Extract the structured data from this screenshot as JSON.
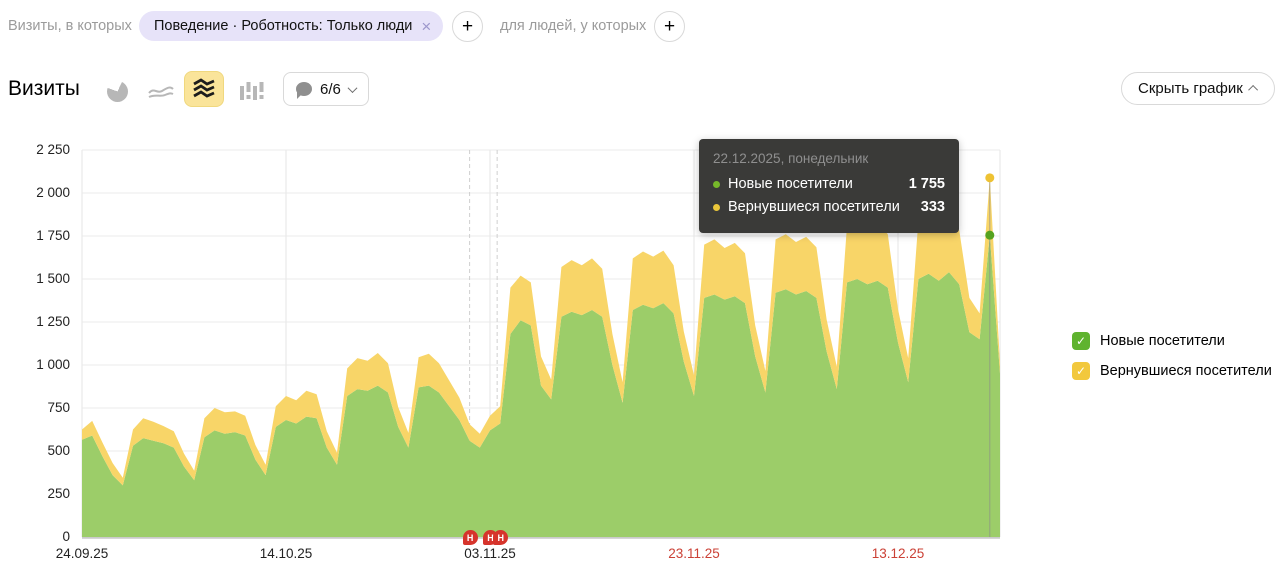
{
  "filter_bar": {
    "prefix_label": "Визиты, в которых",
    "chip": {
      "label": "Поведение · Роботность: Только люди",
      "close": "×"
    },
    "add_visit_filter": "+",
    "suffix_label": "для людей, у которых",
    "add_user_filter": "+"
  },
  "header": {
    "title": "Визиты",
    "comments_count": "6/6",
    "hide_chart_label": "Скрыть график"
  },
  "icons": {
    "check": "✓",
    "close": "×",
    "plus": "+",
    "annotation_badge": "Н"
  },
  "tooltip": {
    "date": "22.12.2025, понедельник",
    "rows": [
      {
        "label": "Новые посетители",
        "value": "1 755",
        "color": "#76b82a"
      },
      {
        "label": "Вернувшиеся посетители",
        "value": "333",
        "color": "#eac63a"
      }
    ]
  },
  "legend": [
    {
      "label": "Новые посетители",
      "color": "#5fb32f"
    },
    {
      "label": "Вернувшиеся посетители",
      "color": "#f2c83d"
    }
  ],
  "chart_data": {
    "type": "area",
    "stacked": true,
    "title": "Визиты",
    "ylim": [
      0,
      2250
    ],
    "grid": true,
    "legend_position": "right",
    "y_ticks": [
      {
        "v": 0,
        "label": "0"
      },
      {
        "v": 250,
        "label": "250"
      },
      {
        "v": 500,
        "label": "500"
      },
      {
        "v": 750,
        "label": "750"
      },
      {
        "v": 1000,
        "label": "1 000"
      },
      {
        "v": 1250,
        "label": "1 250"
      },
      {
        "v": 1500,
        "label": "1 500"
      },
      {
        "v": 1750,
        "label": "1 750"
      },
      {
        "v": 2000,
        "label": "2 000"
      },
      {
        "v": 2250,
        "label": "2 250"
      }
    ],
    "x_ticks": [
      {
        "day": 0,
        "label": "24.09.25",
        "weekend": false
      },
      {
        "day": 20,
        "label": "14.10.25",
        "weekend": false
      },
      {
        "day": 40,
        "label": "03.11.25",
        "weekend": false
      },
      {
        "day": 60,
        "label": "23.11.25",
        "weekend": true
      },
      {
        "day": 80,
        "label": "13.12.25",
        "weekend": true
      }
    ],
    "grid_days": [
      0,
      20,
      40,
      60,
      80,
      90
    ],
    "dashed_line_days": [
      38,
      40.7
    ],
    "annotation_days": [
      38,
      40,
      41
    ],
    "date_range": {
      "start": "24.09.25",
      "end": "23.12.25"
    },
    "series": [
      {
        "name": "Новые посетители",
        "color": "#9ccd69",
        "values": [
          565,
          590,
          470,
          360,
          300,
          530,
          575,
          560,
          545,
          520,
          410,
          330,
          580,
          620,
          600,
          610,
          590,
          450,
          360,
          640,
          680,
          660,
          700,
          690,
          520,
          420,
          820,
          860,
          850,
          880,
          840,
          640,
          520,
          870,
          880,
          840,
          760,
          680,
          560,
          520,
          620,
          660,
          1180,
          1260,
          1230,
          880,
          800,
          1280,
          1310,
          1290,
          1320,
          1280,
          1000,
          780,
          1320,
          1350,
          1330,
          1360,
          1300,
          1020,
          820,
          1390,
          1410,
          1380,
          1400,
          1360,
          1050,
          840,
          1420,
          1440,
          1410,
          1430,
          1390,
          1080,
          860,
          1480,
          1500,
          1470,
          1490,
          1450,
          1130,
          900,
          1500,
          1530,
          1490,
          1540,
          1470,
          1190,
          1150,
          1755,
          950
        ]
      },
      {
        "name": "Вернувшиеся посетители",
        "color": "#f8d568",
        "values": [
          60,
          85,
          80,
          70,
          45,
          95,
          115,
          110,
          100,
          95,
          75,
          55,
          110,
          130,
          125,
          120,
          115,
          85,
          60,
          120,
          140,
          135,
          150,
          140,
          95,
          70,
          160,
          180,
          175,
          190,
          170,
          115,
          85,
          175,
          185,
          170,
          150,
          130,
          95,
          80,
          85,
          100,
          270,
          260,
          250,
          170,
          115,
          290,
          300,
          290,
          300,
          280,
          180,
          120,
          300,
          310,
          300,
          305,
          280,
          175,
          120,
          310,
          320,
          300,
          310,
          290,
          180,
          125,
          310,
          320,
          305,
          315,
          295,
          185,
          130,
          330,
          345,
          330,
          340,
          310,
          195,
          140,
          340,
          350,
          335,
          345,
          315,
          200,
          150,
          333,
          60
        ]
      }
    ],
    "hover": {
      "day": 89,
      "date": "22.12.2025, понедельник",
      "new": 1755,
      "returning": 333,
      "dot_colors": {
        "new": "#55a21f",
        "returning": "#eec233"
      }
    }
  }
}
